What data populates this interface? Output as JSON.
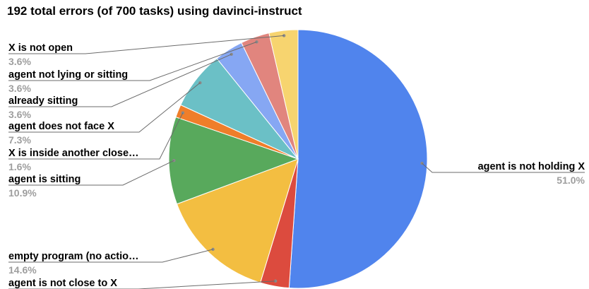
{
  "chart_data": {
    "type": "pie",
    "title": "192 total errors (of 700 tasks) using davinci-instruct",
    "slices": [
      {
        "label": "agent is not holding X",
        "value": 51.0,
        "pct_label": "51.0%",
        "color": "#5084ed"
      },
      {
        "label": "agent is not close to X",
        "value": 3.6,
        "pct_label": "3.6%",
        "color": "#dc4b3e"
      },
      {
        "label": "empty program (no actio…",
        "value": 14.6,
        "pct_label": "14.6%",
        "color": "#f3be41"
      },
      {
        "label": "agent is sitting",
        "value": 10.9,
        "pct_label": "10.9%",
        "color": "#58a95c"
      },
      {
        "label": "X is inside another close…",
        "value": 1.6,
        "pct_label": "1.6%",
        "color": "#ef7e2a"
      },
      {
        "label": "agent does not face X",
        "value": 7.3,
        "pct_label": "7.3%",
        "color": "#6bc0c6"
      },
      {
        "label": "already sitting",
        "value": 3.6,
        "pct_label": "3.6%",
        "color": "#86a7f3"
      },
      {
        "label": "agent not lying or sitting",
        "value": 3.6,
        "pct_label": "3.6%",
        "color": "#e1857e"
      },
      {
        "label": "X is not open",
        "value": 3.6,
        "pct_label": "3.6%",
        "color": "#f7d46f"
      }
    ],
    "start_angle_deg": 0,
    "direction": "clockwise",
    "legend": "none (leader-line labels)"
  }
}
